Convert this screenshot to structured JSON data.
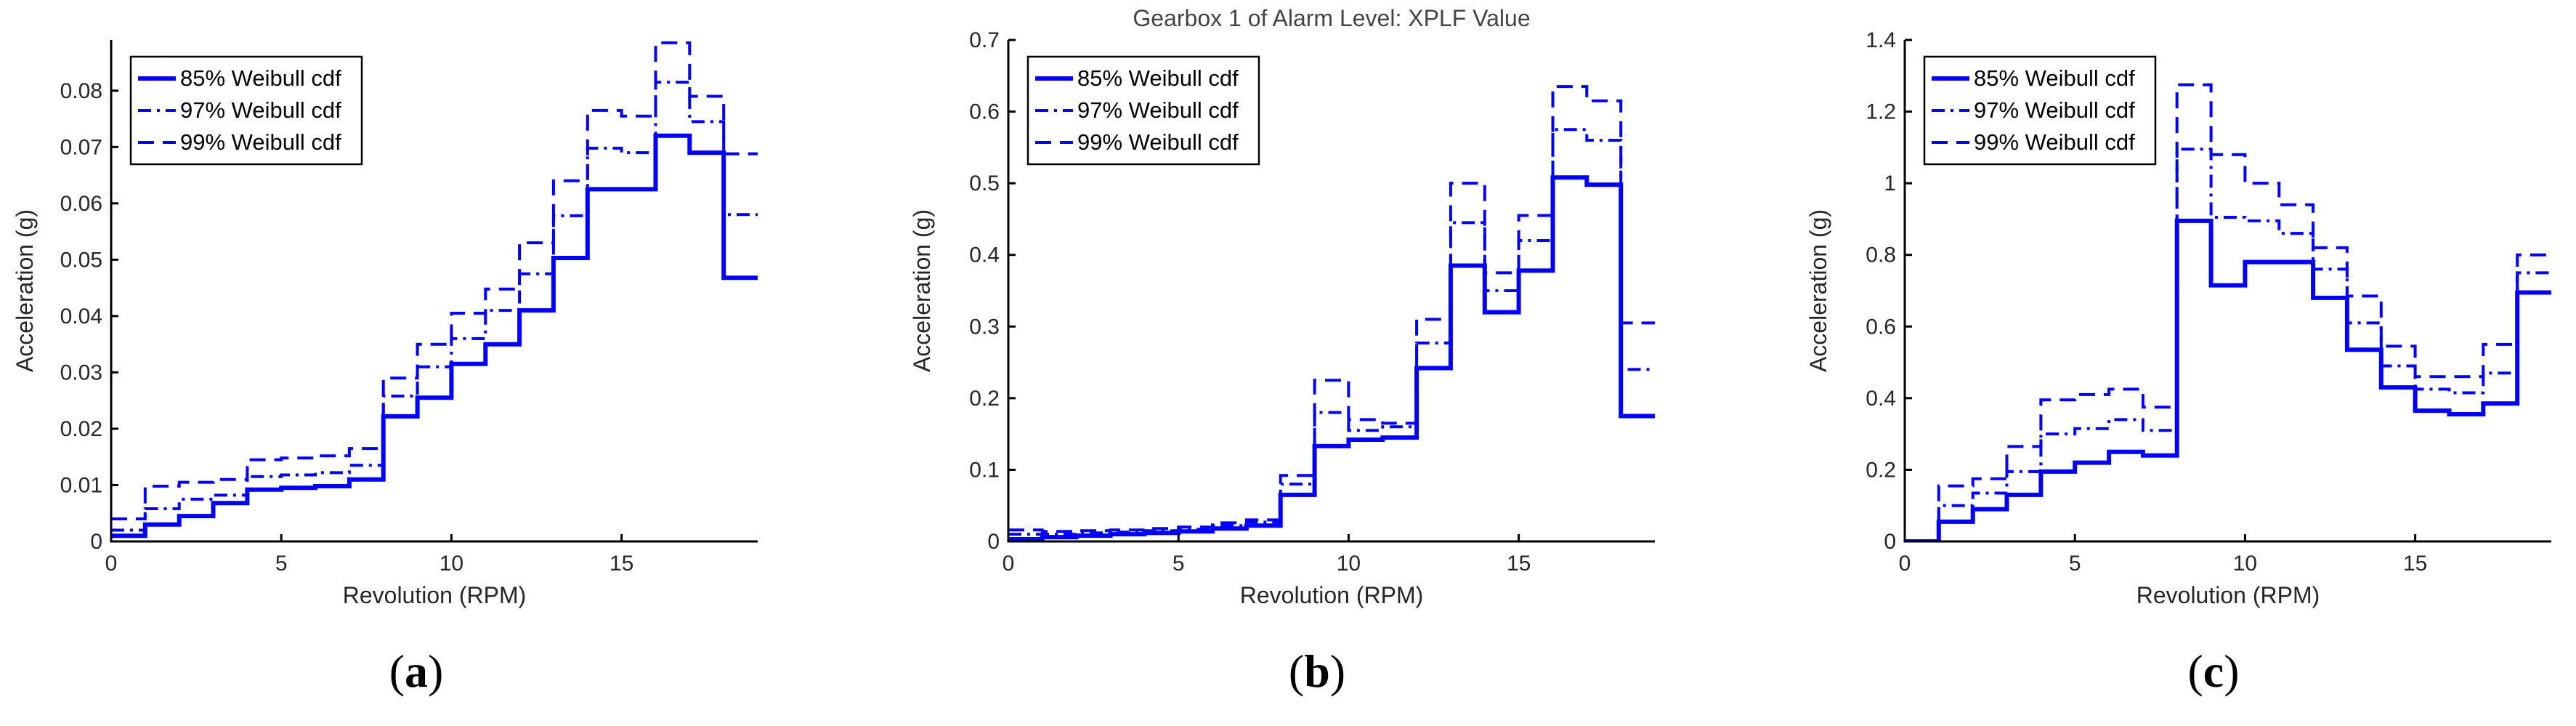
{
  "colors": {
    "series": "#0000FF",
    "axis": "#000000",
    "text": "#262626"
  },
  "series_styles": [
    {
      "name": "85% Weibull cdf",
      "dash": "solid",
      "width": 6
    },
    {
      "name": "97% Weibull cdf",
      "dash": "dashdot",
      "width": 4
    },
    {
      "name": "99% Weibull cdf",
      "dash": "dashed",
      "width": 4
    }
  ],
  "chart_data": [
    {
      "id": "a",
      "type": "line",
      "step": "post",
      "panel_label": "a",
      "title": "",
      "xlabel": "Revolution (RPM)",
      "ylabel": "Acceleration (g)",
      "xlim": [
        0,
        19
      ],
      "ylim": [
        0,
        0.089
      ],
      "xticks": [
        0,
        5,
        10,
        15
      ],
      "xtick_labels": [
        "0",
        "5",
        "10",
        "15"
      ],
      "yticks": [
        0,
        0.01,
        0.02,
        0.03,
        0.04,
        0.05,
        0.06,
        0.07,
        0.08
      ],
      "ytick_labels": [
        "0",
        "0.01",
        "0.02",
        "0.03",
        "0.04",
        "0.05",
        "0.06",
        "0.07",
        "0.08"
      ],
      "legend_position": "top-left",
      "x": [
        0,
        1,
        2,
        3,
        4,
        5,
        6,
        7,
        8,
        9,
        10,
        11,
        12,
        13,
        14,
        15,
        16,
        17,
        18,
        19
      ],
      "series": [
        {
          "name": "85% Weibull cdf",
          "values": [
            0.001,
            0.003,
            0.0045,
            0.0068,
            0.0092,
            0.0095,
            0.0098,
            0.011,
            0.0222,
            0.0255,
            0.0315,
            0.035,
            0.041,
            0.0503,
            0.0625,
            0.0625,
            0.072,
            0.069,
            0.0468,
            0.0468
          ]
        },
        {
          "name": "97% Weibull cdf",
          "values": [
            0.002,
            0.0058,
            0.0075,
            0.0082,
            0.0115,
            0.0118,
            0.0122,
            0.0135,
            0.0258,
            0.031,
            0.036,
            0.041,
            0.0475,
            0.0578,
            0.0698,
            0.069,
            0.0815,
            0.0745,
            0.058,
            0.058
          ]
        },
        {
          "name": "99% Weibull cdf",
          "values": [
            0.004,
            0.0098,
            0.0105,
            0.011,
            0.0145,
            0.0148,
            0.0152,
            0.0165,
            0.029,
            0.035,
            0.0405,
            0.0448,
            0.053,
            0.064,
            0.0765,
            0.0755,
            0.0885,
            0.079,
            0.0688,
            0.0688
          ]
        }
      ]
    },
    {
      "id": "b",
      "type": "line",
      "step": "post",
      "panel_label": "b",
      "title": "Gearbox 1 of Alarm Level: XPLF Value",
      "xlabel": "Revolution (RPM)",
      "ylabel": "Acceleration (g)",
      "xlim": [
        0,
        19
      ],
      "ylim": [
        0,
        0.7
      ],
      "xticks": [
        0,
        5,
        10,
        15
      ],
      "xtick_labels": [
        "0",
        "5",
        "10",
        "15"
      ],
      "yticks": [
        0,
        0.1,
        0.2,
        0.3,
        0.4,
        0.5,
        0.6,
        0.7
      ],
      "ytick_labels": [
        "0",
        "0.1",
        "0.2",
        "0.3",
        "0.4",
        "0.5",
        "0.6",
        "0.7"
      ],
      "legend_position": "top-left",
      "x": [
        0,
        1,
        2,
        3,
        4,
        5,
        6,
        7,
        8,
        9,
        10,
        11,
        12,
        13,
        14,
        15,
        16,
        17,
        18,
        19
      ],
      "series": [
        {
          "name": "85% Weibull cdf",
          "values": [
            0.003,
            0.006,
            0.008,
            0.01,
            0.012,
            0.014,
            0.018,
            0.022,
            0.065,
            0.133,
            0.142,
            0.145,
            0.242,
            0.385,
            0.32,
            0.378,
            0.508,
            0.498,
            0.175,
            0.175
          ]
        },
        {
          "name": "97% Weibull cdf",
          "values": [
            0.01,
            0.01,
            0.012,
            0.013,
            0.015,
            0.017,
            0.022,
            0.027,
            0.08,
            0.18,
            0.155,
            0.16,
            0.277,
            0.445,
            0.35,
            0.42,
            0.575,
            0.56,
            0.24,
            0.24
          ]
        },
        {
          "name": "99% Weibull cdf",
          "values": [
            0.016,
            0.014,
            0.015,
            0.016,
            0.018,
            0.02,
            0.026,
            0.03,
            0.092,
            0.225,
            0.17,
            0.165,
            0.31,
            0.5,
            0.375,
            0.455,
            0.635,
            0.615,
            0.305,
            0.305
          ]
        }
      ]
    },
    {
      "id": "c",
      "type": "line",
      "step": "post",
      "panel_label": "c",
      "title": "",
      "xlabel": "Revolution (RPM)",
      "ylabel": "Acceleration (g)",
      "xlim": [
        0,
        19
      ],
      "ylim": [
        0,
        1.4
      ],
      "xticks": [
        0,
        5,
        10,
        15
      ],
      "xtick_labels": [
        "0",
        "5",
        "10",
        "15"
      ],
      "yticks": [
        0,
        0.2,
        0.4,
        0.6,
        0.8,
        1.0,
        1.2,
        1.4
      ],
      "ytick_labels": [
        "0",
        "0.2",
        "0.4",
        "0.6",
        "0.8",
        "1",
        "1.2",
        "1.4"
      ],
      "legend_position": "top-left",
      "x": [
        0,
        1,
        2,
        3,
        4,
        5,
        6,
        7,
        8,
        9,
        10,
        11,
        12,
        13,
        14,
        15,
        16,
        17,
        18,
        19
      ],
      "series": [
        {
          "name": "85% Weibull cdf",
          "values": [
            0.0,
            0.055,
            0.09,
            0.13,
            0.195,
            0.22,
            0.25,
            0.24,
            0.895,
            0.715,
            0.78,
            0.78,
            0.68,
            0.535,
            0.43,
            0.365,
            0.355,
            0.385,
            0.695,
            0.695
          ]
        },
        {
          "name": "97% Weibull cdf",
          "values": [
            0.0,
            0.1,
            0.135,
            0.195,
            0.3,
            0.315,
            0.34,
            0.31,
            1.095,
            0.905,
            0.895,
            0.86,
            0.76,
            0.61,
            0.49,
            0.425,
            0.415,
            0.47,
            0.75,
            0.75
          ]
        },
        {
          "name": "99% Weibull cdf",
          "values": [
            0.0,
            0.155,
            0.175,
            0.265,
            0.395,
            0.41,
            0.425,
            0.375,
            1.275,
            1.08,
            1.0,
            0.94,
            0.82,
            0.685,
            0.545,
            0.46,
            0.46,
            0.55,
            0.8,
            0.8
          ]
        }
      ]
    }
  ]
}
